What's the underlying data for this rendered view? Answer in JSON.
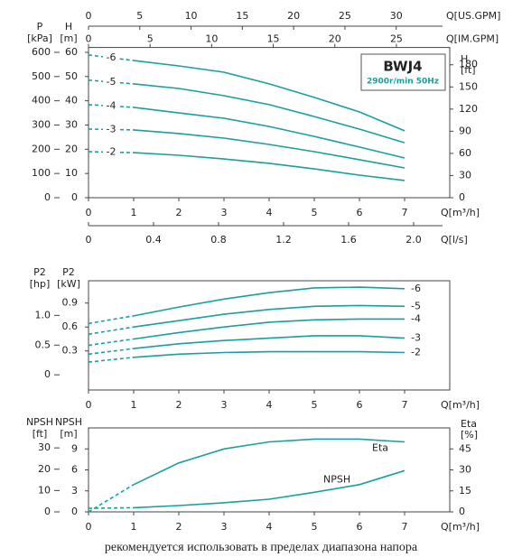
{
  "chart_data": [
    {
      "type": "line",
      "box_title": "BWJ4",
      "box_subtitle": "2900r/min 50Hz",
      "x": [
        0,
        1,
        2,
        3,
        4,
        5,
        6,
        7
      ],
      "xlim": [
        0,
        8
      ],
      "xticks": [
        0,
        1,
        2,
        3,
        4,
        5,
        6,
        7
      ],
      "xlabel": "Q[m³/h]",
      "ylim": [
        0,
        62
      ],
      "yticks": [
        0,
        10,
        20,
        30,
        40,
        50,
        60
      ],
      "ylabel": [
        "H",
        "[m]"
      ],
      "y_outer": {
        "title": [
          "P",
          "[kPa]"
        ],
        "lim": [
          0,
          620
        ],
        "ticks": [
          0,
          100,
          200,
          300,
          400,
          500,
          600
        ]
      },
      "y2": {
        "title": [
          "H",
          "[ft]"
        ],
        "lim": [
          0,
          203.4
        ],
        "ticks": [
          0,
          30,
          60,
          90,
          120,
          150,
          180
        ]
      },
      "x_top_outer": {
        "title": [
          "Q[US.GPM]"
        ],
        "lim": [
          0,
          35.22
        ],
        "ticks": [
          0,
          5,
          10,
          15,
          20,
          25,
          30
        ]
      },
      "x_top_inner": {
        "title": [
          "Q[IM.GPM]"
        ],
        "lim": [
          0,
          29.33
        ],
        "ticks": [
          0,
          5,
          10,
          15,
          20,
          25
        ]
      },
      "x_bottom_outer": {
        "title": [
          "Q[l/s]"
        ],
        "lim": [
          0,
          2.222
        ],
        "ticks": [
          0,
          0.4,
          0.8,
          1.2,
          1.6,
          {
            "value": 2,
            "label": "2.0"
          }
        ]
      },
      "series": [
        {
          "name": "-6",
          "color": "#1a9f9f",
          "label_position": "start",
          "values": [
            58.9,
            56.6,
            54.4,
            51.8,
            47,
            41.4,
            35.4,
            27.6
          ]
        },
        {
          "name": "-5",
          "color": "#1a9f9f",
          "label_position": "start",
          "values": [
            48.5,
            47,
            45.1,
            42.1,
            38.4,
            33.5,
            28.3,
            22.7
          ]
        },
        {
          "name": "-4",
          "color": "#1a9f9f",
          "label_position": "start",
          "values": [
            38.4,
            37.3,
            35,
            32.8,
            29.4,
            25.3,
            20.9,
            16.4
          ]
        },
        {
          "name": "-3",
          "color": "#1a9f9f",
          "label_position": "start",
          "values": [
            28.3,
            28,
            26.5,
            24.6,
            22,
            19,
            15.7,
            12.3
          ]
        },
        {
          "name": "-2",
          "color": "#1a9f9f",
          "label_position": "start",
          "values": [
            19,
            18.6,
            17.5,
            16,
            14.2,
            11.9,
            9.3,
            7.1
          ]
        }
      ]
    },
    {
      "type": "line",
      "x": [
        0,
        1,
        2,
        3,
        4,
        5,
        6,
        7
      ],
      "xlim": [
        0,
        8
      ],
      "xticks": [
        0,
        1,
        2,
        3,
        4,
        5,
        6,
        7
      ],
      "xlabel": "Q[m³/h]",
      "ylim": [
        -0.19,
        1.18
      ],
      "yticks": [
        0.3,
        0.6,
        0.9
      ],
      "ylabel": [
        "P2",
        "[kW]"
      ],
      "y_outer": {
        "title": [
          "P2",
          "[hp]"
        ],
        "lim": [
          -0.255,
          1.582
        ],
        "ticks": [
          0,
          0.5,
          {
            "value": 1,
            "label": "1.0"
          }
        ]
      },
      "series": [
        {
          "name": "-6",
          "color": "#1a9f9f",
          "label_position": "end",
          "values": [
            0.645,
            0.74,
            0.85,
            0.95,
            1.03,
            1.09,
            1.1,
            1.08
          ]
        },
        {
          "name": "-5",
          "color": "#1a9f9f",
          "label_position": "end",
          "values": [
            0.51,
            0.6,
            0.68,
            0.76,
            0.82,
            0.86,
            0.87,
            0.86
          ]
        },
        {
          "name": "-4",
          "color": "#1a9f9f",
          "label_position": "end",
          "values": [
            0.37,
            0.45,
            0.53,
            0.6,
            0.66,
            0.69,
            0.7,
            0.7
          ]
        },
        {
          "name": "-3",
          "color": "#1a9f9f",
          "label_position": "end",
          "values": [
            0.26,
            0.33,
            0.39,
            0.43,
            0.46,
            0.49,
            0.49,
            0.46
          ]
        },
        {
          "name": "-2",
          "color": "#1a9f9f",
          "label_position": "end",
          "values": [
            0.16,
            0.22,
            0.26,
            0.28,
            0.29,
            0.29,
            0.29,
            0.28
          ]
        }
      ]
    },
    {
      "type": "line",
      "x": [
        0,
        1,
        2,
        3,
        4,
        5,
        6,
        7
      ],
      "xlim": [
        0,
        8
      ],
      "xticks": [
        0,
        1,
        2,
        3,
        4,
        5,
        6,
        7
      ],
      "xlabel": "Q[m³/h]",
      "ylim": [
        0,
        12
      ],
      "yticks": [
        0,
        3,
        6,
        9
      ],
      "ylabel": [
        "NPSH",
        "[m]"
      ],
      "y_outer": {
        "title": [
          "NPSH",
          "[ft]"
        ],
        "lim": [
          0,
          39.37
        ],
        "ticks": [
          0,
          10,
          20,
          30
        ]
      },
      "y2": {
        "title": [
          "Eta",
          "[%]"
        ],
        "lim": [
          0,
          60
        ],
        "ticks": [
          0,
          15,
          30,
          45
        ]
      },
      "series": [
        {
          "name": "NPSH",
          "color": "#1a9f9f",
          "label_position": "above",
          "values": [
            0.5,
            0.6,
            0.9,
            1.3,
            1.8,
            2.8,
            3.9,
            5.9
          ]
        },
        {
          "name": "Eta",
          "color": "#1a9f9f",
          "label_position": "below",
          "axis": "y2",
          "values": [
            0,
            19.5,
            35,
            45,
            50,
            52,
            52,
            50
          ]
        }
      ]
    }
  ],
  "footer": "рекомендуется использовать в пределах диапазона напора"
}
